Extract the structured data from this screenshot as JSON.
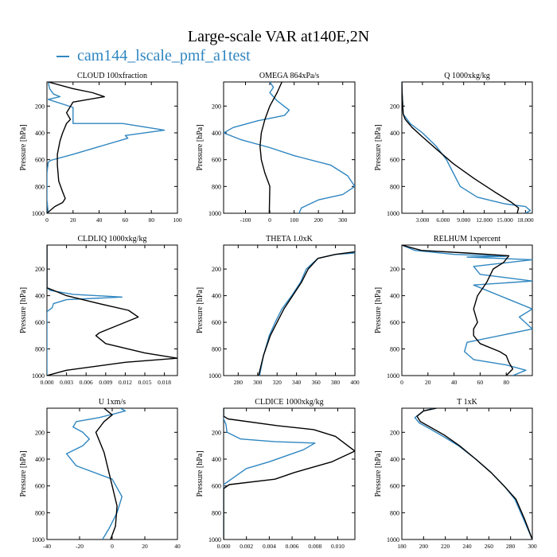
{
  "figure": {
    "title": "Large-scale VAR at140E,2N",
    "legend": [
      {
        "name": "cam144_lscale_pmf_a1test",
        "color": "#2f86c0"
      }
    ],
    "ylabel": "Pressure [hPa]",
    "yticks": [
      200,
      400,
      600,
      800,
      1000
    ],
    "yrange": [
      1000,
      20
    ]
  },
  "chart_data": [
    {
      "type": "line",
      "title": "CLOUD  100xfraction",
      "xlim": [
        0,
        100
      ],
      "ylim": [
        1000,
        20
      ],
      "xticks": [
        0,
        20,
        40,
        60,
        80,
        100
      ],
      "xtick_labels": [
        "0",
        "20",
        "40",
        "60",
        "80",
        "100"
      ],
      "series": [
        {
          "name": "cam144_lscale_pmf_a1test",
          "color": "#2f86c0",
          "x": [
            1,
            2,
            5,
            10,
            1,
            20,
            20,
            20,
            58,
            90,
            60,
            62,
            20,
            3,
            1,
            0,
            0,
            1
          ],
          "y": [
            20,
            70,
            110,
            130,
            150,
            210,
            230,
            330,
            330,
            380,
            420,
            440,
            560,
            605,
            620,
            700,
            900,
            1000
          ]
        },
        {
          "color": "#000000",
          "x": [
            1,
            20,
            35,
            44,
            20,
            15,
            18,
            15,
            12,
            10,
            8,
            8,
            9,
            12,
            14,
            12,
            6,
            0
          ],
          "y": [
            20,
            70,
            100,
            130,
            170,
            250,
            300,
            330,
            400,
            460,
            560,
            640,
            760,
            840,
            890,
            920,
            950,
            1000
          ]
        }
      ]
    },
    {
      "type": "line",
      "title": "OMEGA  864xPa/s",
      "xlim": [
        -190,
        350
      ],
      "ylim": [
        1000,
        20
      ],
      "xticks": [
        -100,
        0,
        100,
        200,
        300
      ],
      "xtick_labels": [
        "-100",
        "0",
        "100",
        "200",
        "300"
      ],
      "series": [
        {
          "name": "cam144_lscale_pmf_a1test",
          "color": "#2f86c0",
          "x": [
            0,
            15,
            0,
            30,
            80,
            60,
            -50,
            -150,
            -190,
            -120,
            0,
            100,
            250,
            320,
            350,
            300,
            200,
            130,
            120
          ],
          "y": [
            20,
            60,
            100,
            160,
            230,
            270,
            310,
            360,
            400,
            450,
            510,
            570,
            640,
            720,
            800,
            860,
            900,
            960,
            1000
          ]
        },
        {
          "color": "#000000",
          "x": [
            50,
            30,
            0,
            -20,
            -35,
            -40,
            -35,
            -20,
            0,
            -2
          ],
          "y": [
            20,
            100,
            200,
            300,
            400,
            500,
            600,
            700,
            800,
            1000
          ]
        }
      ]
    },
    {
      "type": "line",
      "title": "Q  1000xkg/kg",
      "xlim": [
        0,
        19000
      ],
      "ylim": [
        1000,
        20
      ],
      "xticks": [
        3000,
        6000,
        9000,
        12000,
        15000,
        18000
      ],
      "xtick_labels": [
        "3.000",
        "6.000",
        "9.000",
        "12.000",
        "15.000",
        "18.000"
      ],
      "series": [
        {
          "name": "cam144_lscale_pmf_a1test",
          "color": "#2f86c0",
          "x": [
            0,
            50,
            200,
            1200,
            3000,
            5000,
            6500,
            7500,
            8500,
            11000,
            15000,
            18000,
            18700,
            18000
          ],
          "y": [
            20,
            100,
            260,
            330,
            400,
            500,
            600,
            700,
            800,
            880,
            930,
            950,
            980,
            1000
          ]
        },
        {
          "color": "#000000",
          "x": [
            0,
            30,
            200,
            500,
            1500,
            3000,
            5000,
            7500,
            10500,
            13500,
            16000,
            17000,
            16800
          ],
          "y": [
            20,
            100,
            260,
            300,
            360,
            430,
            520,
            630,
            740,
            840,
            920,
            960,
            1000
          ]
        }
      ]
    },
    {
      "type": "line",
      "title": "CLDLIQ  1000xkg/kg",
      "xlim": [
        0,
        0.02
      ],
      "ylim": [
        1000,
        20
      ],
      "xticks": [
        0,
        0.003,
        0.006,
        0.009,
        0.012,
        0.015,
        0.018
      ],
      "xtick_labels": [
        "0.000",
        "0.003",
        "0.006",
        "0.009",
        "0.012",
        "0.015",
        "0.018"
      ],
      "series": [
        {
          "name": "cam144_lscale_pmf_a1test",
          "color": "#2f86c0",
          "x": [
            0,
            0,
            0.0005,
            0.004,
            0.0115,
            0.003,
            0.001,
            0.0008,
            0,
            0
          ],
          "y": [
            20,
            340,
            360,
            390,
            410,
            430,
            460,
            490,
            520,
            1000
          ]
        },
        {
          "color": "#000000",
          "x": [
            0,
            0,
            0.001,
            0.003,
            0.008,
            0.0125,
            0.014,
            0.011,
            0.008,
            0.0075,
            0.009,
            0.015,
            0.02,
            0.012,
            0.003,
            0
          ],
          "y": [
            20,
            340,
            360,
            400,
            460,
            510,
            560,
            620,
            680,
            700,
            760,
            830,
            870,
            900,
            960,
            1000
          ]
        }
      ]
    },
    {
      "type": "line",
      "title": "THETA  1.0xK",
      "xlim": [
        265,
        400
      ],
      "ylim": [
        1000,
        20
      ],
      "xticks": [
        280,
        300,
        320,
        340,
        360,
        380,
        400
      ],
      "xtick_labels": [
        "280",
        "300",
        "320",
        "340",
        "360",
        "380",
        "400"
      ],
      "series": [
        {
          "name": "cam144_lscale_pmf_a1test",
          "color": "#2f86c0",
          "x": [
            400,
            380,
            362,
            350,
            344,
            335,
            325,
            318,
            312,
            306,
            302
          ],
          "y": [
            80,
            90,
            120,
            200,
            300,
            400,
            500,
            600,
            700,
            850,
            1000
          ]
        },
        {
          "color": "#000000",
          "x": [
            400,
            380,
            362,
            352,
            345,
            336,
            327,
            320,
            313,
            306,
            301
          ],
          "y": [
            70,
            90,
            120,
            200,
            300,
            400,
            500,
            600,
            700,
            850,
            1000
          ]
        }
      ]
    },
    {
      "type": "line",
      "title": "RELHUM  1xpercent",
      "xlim": [
        0,
        100
      ],
      "ylim": [
        1000,
        20
      ],
      "xticks": [
        0,
        20,
        40,
        60,
        80
      ],
      "xtick_labels": [
        "0",
        "20",
        "40",
        "60",
        "80"
      ],
      "series": [
        {
          "name": "cam144_lscale_pmf_a1test",
          "color": "#2f86c0",
          "x": [
            0,
            10,
            40,
            80,
            50,
            100,
            55,
            60,
            100,
            55,
            100,
            90,
            100,
            50,
            48,
            55,
            80,
            95,
            85
          ],
          "y": [
            20,
            60,
            90,
            105,
            110,
            130,
            180,
            240,
            290,
            320,
            500,
            560,
            650,
            750,
            820,
            880,
            920,
            960,
            1000
          ]
        },
        {
          "color": "#000000",
          "x": [
            0,
            15,
            50,
            82,
            78,
            70,
            65,
            58,
            55,
            58,
            55,
            55,
            60,
            75,
            80,
            82,
            85,
            80
          ],
          "y": [
            20,
            60,
            80,
            100,
            150,
            200,
            300,
            400,
            500,
            600,
            650,
            700,
            760,
            820,
            850,
            900,
            950,
            1000
          ]
        }
      ]
    },
    {
      "type": "line",
      "title": "U  1xm/s",
      "xlim": [
        -40,
        40
      ],
      "ylim": [
        1000,
        20
      ],
      "xticks": [
        -40,
        -20,
        0,
        20,
        40
      ],
      "xtick_labels": [
        "-40",
        "-20",
        "0",
        "20",
        "40"
      ],
      "series": [
        {
          "name": "cam144_lscale_pmf_a1test",
          "color": "#2f86c0",
          "x": [
            5,
            8,
            2,
            -8,
            -22,
            -24,
            -18,
            -14,
            -18,
            -28,
            -22,
            0,
            6,
            3,
            -2,
            -6
          ],
          "y": [
            20,
            40,
            60,
            90,
            120,
            160,
            200,
            250,
            300,
            360,
            450,
            550,
            680,
            800,
            920,
            1000
          ]
        },
        {
          "color": "#000000",
          "x": [
            -5,
            0,
            -5,
            -10,
            -5,
            -2,
            0,
            3,
            2,
            -1
          ],
          "y": [
            20,
            70,
            120,
            200,
            350,
            500,
            600,
            750,
            900,
            1000
          ]
        }
      ]
    },
    {
      "type": "line",
      "title": "CLDICE  1000xkg/kg",
      "xlim": [
        0,
        0.0115
      ],
      "ylim": [
        1000,
        20
      ],
      "xticks": [
        0,
        0.002,
        0.004,
        0.006,
        0.008,
        0.01
      ],
      "xtick_labels": [
        "0.000",
        "0.002",
        "0.004",
        "0.006",
        "0.008",
        "0.010"
      ],
      "series": [
        {
          "name": "cam144_lscale_pmf_a1test",
          "color": "#2f86c0",
          "x": [
            0,
            0,
            0.0002,
            0.0003,
            0.0015,
            0.0045,
            0.008,
            0.007,
            0.004,
            0.002,
            0.0015,
            0.001,
            0,
            0
          ],
          "y": [
            20,
            100,
            140,
            200,
            250,
            270,
            280,
            330,
            420,
            470,
            500,
            530,
            590,
            1000
          ]
        },
        {
          "color": "#000000",
          "x": [
            0,
            0,
            0.0004,
            0.0047,
            0.0079,
            0.0098,
            0.0115,
            0.0095,
            0.0062,
            0.0045,
            0.0005,
            0,
            0
          ],
          "y": [
            20,
            80,
            100,
            150,
            180,
            230,
            340,
            420,
            500,
            550,
            590,
            620,
            1000
          ]
        }
      ]
    },
    {
      "type": "line",
      "title": "T  1xK",
      "xlim": [
        180,
        300
      ],
      "ylim": [
        1000,
        20
      ],
      "xticks": [
        180,
        200,
        220,
        240,
        260,
        280,
        300
      ],
      "xtick_labels": [
        "180",
        "200",
        "220",
        "240",
        "260",
        "280",
        "300"
      ],
      "series": [
        {
          "name": "cam144_lscale_pmf_a1test",
          "color": "#2f86c0",
          "x": [
            210,
            200,
            192,
            196,
            205,
            218,
            232,
            248,
            262,
            274,
            284,
            292,
            300
          ],
          "y": [
            20,
            40,
            90,
            130,
            170,
            230,
            300,
            400,
            500,
            600,
            700,
            850,
            1000
          ]
        },
        {
          "color": "#000000",
          "x": [
            212,
            200,
            194,
            197,
            206,
            219,
            233,
            248,
            262,
            274,
            285,
            293,
            300
          ],
          "y": [
            20,
            40,
            80,
            120,
            160,
            220,
            300,
            400,
            500,
            600,
            700,
            850,
            1000
          ]
        }
      ]
    }
  ]
}
